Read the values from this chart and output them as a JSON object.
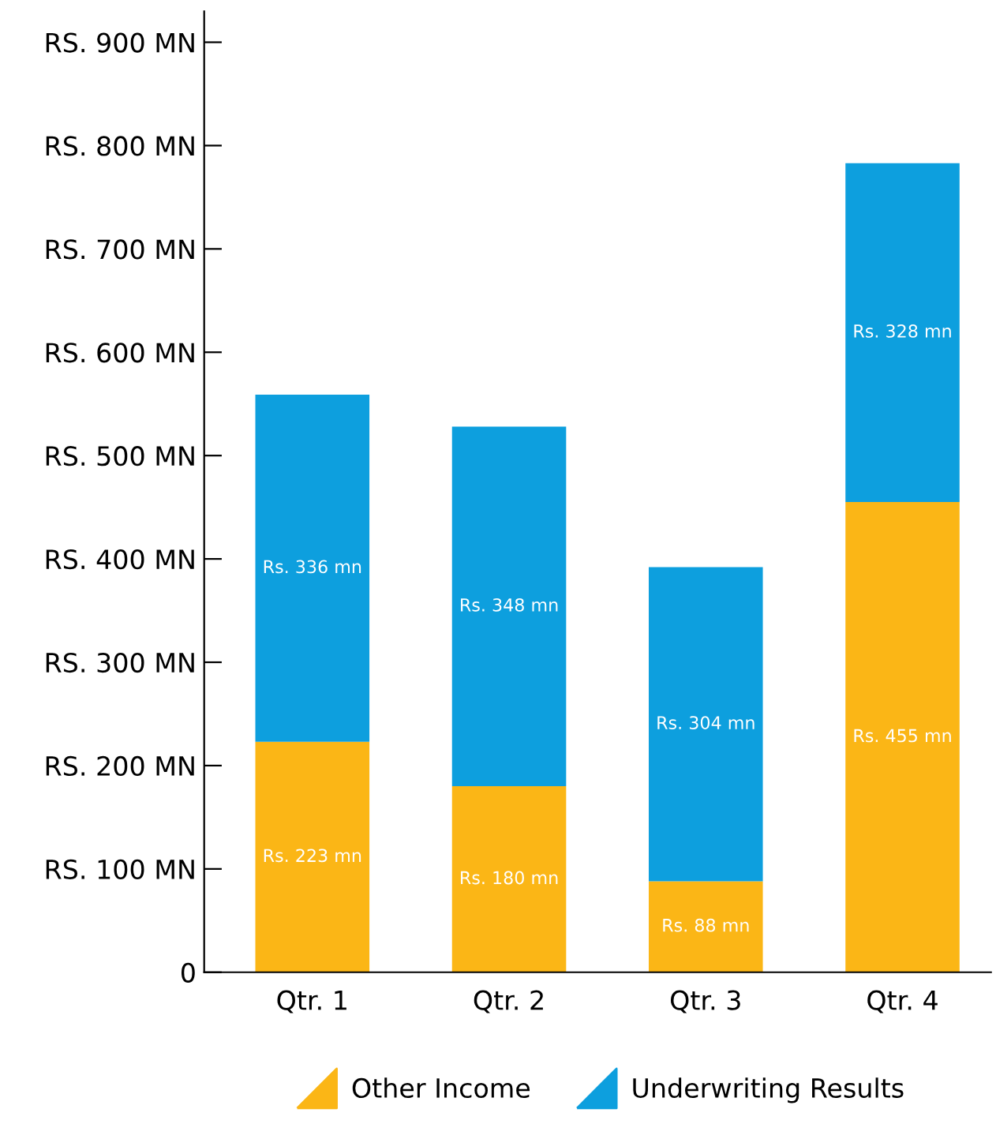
{
  "chart_data": {
    "type": "bar",
    "stacked": true,
    "categories": [
      "Qtr. 1",
      "Qtr. 2",
      "Qtr. 3",
      "Qtr. 4"
    ],
    "series": [
      {
        "name": "Other Income",
        "color": "#fbb616",
        "values": [
          223,
          180,
          88,
          455
        ],
        "value_labels": [
          "Rs. 223 mn",
          "Rs. 180 mn",
          "Rs. 88 mn",
          "Rs. 455 mn"
        ]
      },
      {
        "name": "Underwriting Results",
        "color": "#0d9fde",
        "values": [
          336,
          348,
          304,
          328
        ],
        "value_labels": [
          "Rs. 336 mn",
          "Rs. 348 mn",
          "Rs. 304 mn",
          "Rs. 328 mn"
        ]
      }
    ],
    "ylim": [
      0,
      930
    ],
    "yticks": [
      0,
      {
        "value": 100,
        "label": "RS. 100 MN"
      },
      {
        "value": 200,
        "label": "RS. 200 MN"
      },
      {
        "value": 300,
        "label": "RS. 300 MN"
      },
      {
        "value": 400,
        "label": "RS. 400 MN"
      },
      {
        "value": 500,
        "label": "RS. 500 MN"
      },
      {
        "value": 600,
        "label": "RS. 600 MN"
      },
      {
        "value": 700,
        "label": "RS. 700 MN"
      },
      {
        "value": 800,
        "label": "RS. 800 MN"
      },
      {
        "value": 900,
        "label": "RS. 900 MN"
      }
    ],
    "grid": false,
    "legend": "bottom"
  }
}
